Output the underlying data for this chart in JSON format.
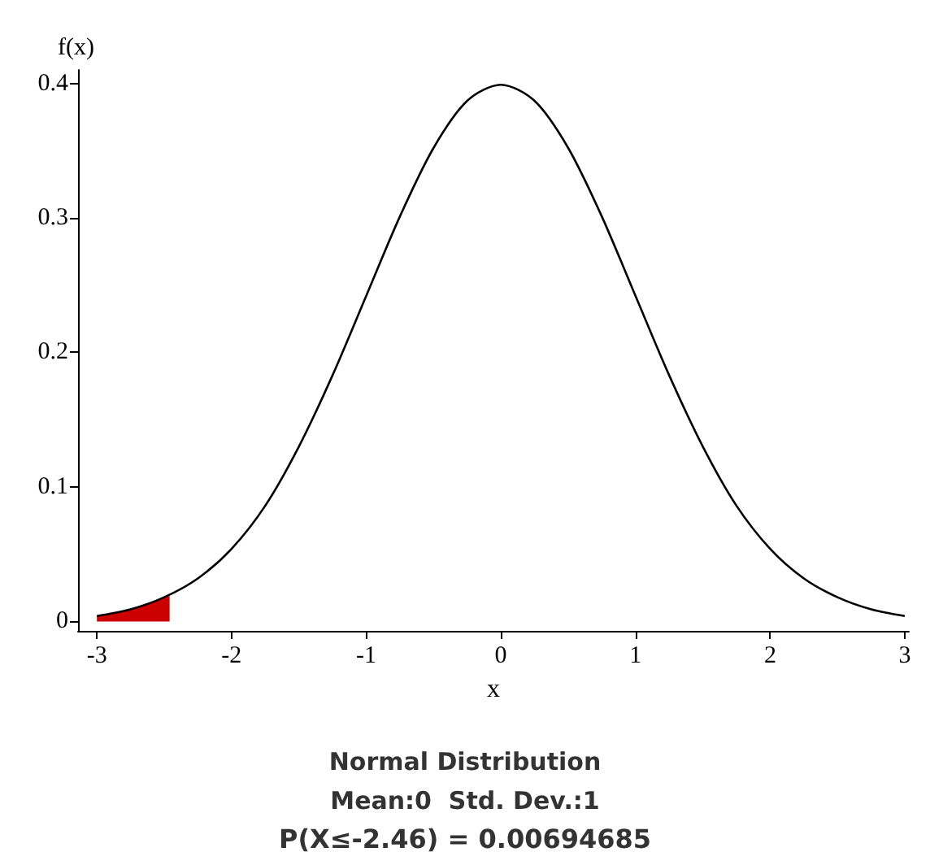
{
  "chart_data": {
    "type": "line",
    "title": "Normal Distribution",
    "subtitle": "Mean:0  Std. Dev.:1",
    "annotations": [
      "P(X≤-2.46) = 0.00694685"
    ],
    "xlabel": "x",
    "ylabel": "f(x)",
    "series": [
      {
        "color": "#000000",
        "x": [
          -3,
          -2.75,
          -2.5,
          -2.25,
          -2,
          -1.75,
          -1.5,
          -1.25,
          -1,
          -0.75,
          -0.5,
          -0.25,
          0,
          0.25,
          0.5,
          0.75,
          1,
          1.25,
          1.5,
          1.75,
          2,
          2.25,
          2.5,
          2.75,
          3
        ],
        "values": [
          0.004,
          0.009,
          0.018,
          0.032,
          0.054,
          0.086,
          0.13,
          0.183,
          0.242,
          0.301,
          0.352,
          0.387,
          0.399,
          0.387,
          0.352,
          0.301,
          0.242,
          0.183,
          0.13,
          0.086,
          0.054,
          0.032,
          0.018,
          0.009,
          0.004
        ]
      },
      {
        "type": "area",
        "color": "#cc0000",
        "x": [
          -3,
          -2.75,
          -2.46
        ],
        "values": [
          0.004,
          0.009,
          0.019
        ]
      }
    ],
    "xlim": [
      -3.14,
      3.03
    ],
    "ylim": [
      -0.007,
      0.41
    ],
    "xticks": [
      -3,
      -2,
      -1,
      0,
      1,
      2,
      3
    ],
    "yticks": [
      0,
      0.1,
      0.2,
      0.3,
      0.4
    ],
    "grid": false,
    "marker": "none",
    "line_style": "solid"
  }
}
